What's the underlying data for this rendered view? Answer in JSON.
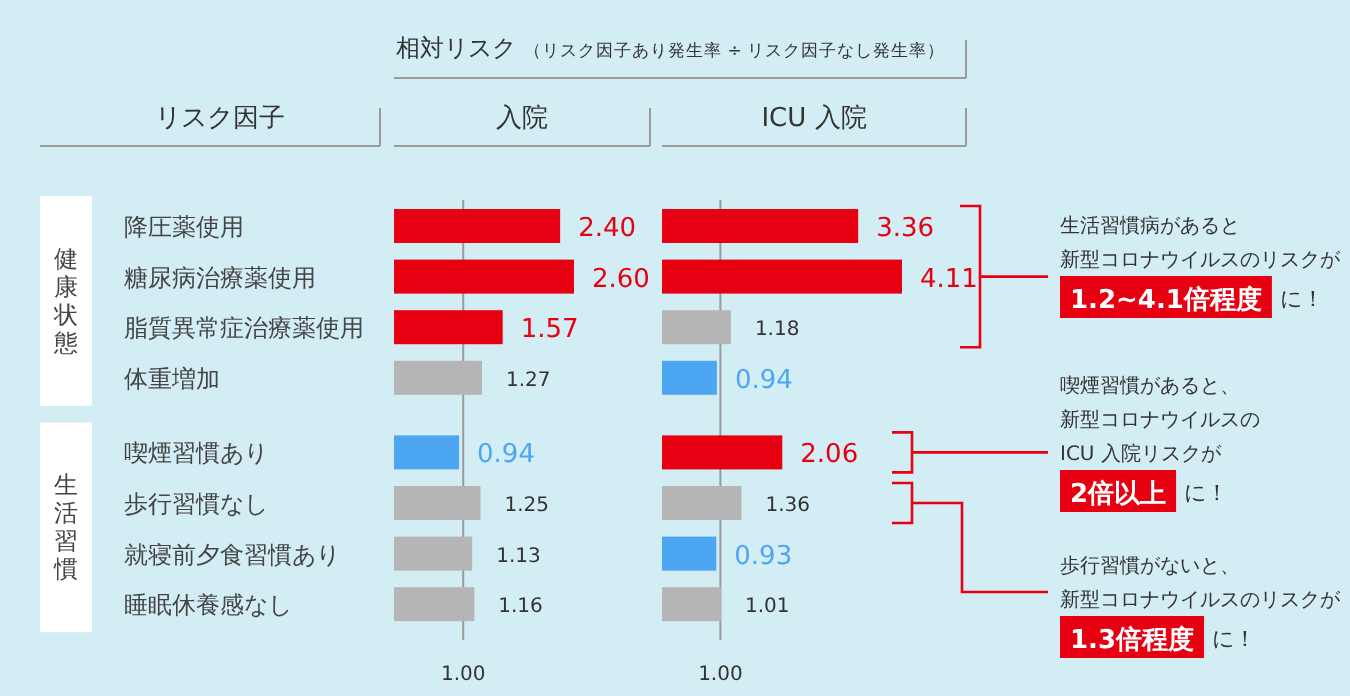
{
  "chart_data": [
    {
      "type": "bar",
      "orientation": "horizontal",
      "title": "入院",
      "ylabel": "リスク因子",
      "categories": [
        "降圧薬使用",
        "糖尿病治療薬使用",
        "脂質異常症治療薬使用",
        "体重増加",
        "喫煙習慣あり",
        "歩行習慣なし",
        "就寝前夕食習慣あり",
        "睡眠休養感なし"
      ],
      "values": [
        2.4,
        2.6,
        1.57,
        1.27,
        0.94,
        1.25,
        1.13,
        1.16
      ],
      "colors": [
        "#e60012",
        "#e60012",
        "#e60012",
        "#b5b5b5",
        "#4da6f2",
        "#b5b5b5",
        "#b5b5b5",
        "#b5b5b5"
      ],
      "value_labels": [
        "2.40",
        "2.60",
        "1.57",
        "1.27",
        "0.94",
        "1.25",
        "1.13",
        "1.16"
      ],
      "ref_lines": [
        {
          "axis": "x",
          "value": 1,
          "label": "1.00",
          "color": "#9a9a9a"
        }
      ],
      "annotations": [
        "相対リスク",
        "（リスク因子あり発生率 ÷ リスク因子なし発生率）",
        "健康状態",
        "生活習慣"
      ]
    },
    {
      "type": "bar",
      "orientation": "horizontal",
      "title": "ICU 入院",
      "categories": [
        null,
        null,
        null,
        null,
        null,
        null,
        null,
        null
      ],
      "values": [
        3.36,
        4.11,
        1.18,
        0.94,
        2.06,
        1.36,
        0.93,
        1.01
      ],
      "colors": [
        "#e60012",
        "#e60012",
        "#b5b5b5",
        "#4da6f2",
        "#e60012",
        "#b5b5b5",
        "#4da6f2",
        "#b5b5b5"
      ],
      "value_labels": [
        "3.36",
        "4.11",
        "1.18",
        "0.94",
        "2.06",
        "1.36",
        "0.93",
        "1.01"
      ],
      "ref_lines": [
        {
          "axis": "x",
          "value": 1,
          "label": "1.00",
          "color": "#9a9a9a"
        }
      ],
      "annotations": [
        "生活習慣病があると",
        "新型コロナウイルスのリスクが",
        "1.2~4.1倍程度",
        "に！",
        "喫煙習慣があると、",
        "新型コロナウイルスの",
        "ICU 入院リスクが",
        "2倍以上",
        "に！",
        "歩行習慣がないと、",
        "新型コロナウイルスのリスクが",
        "1.3倍程度",
        "に！"
      ]
    }
  ]
}
